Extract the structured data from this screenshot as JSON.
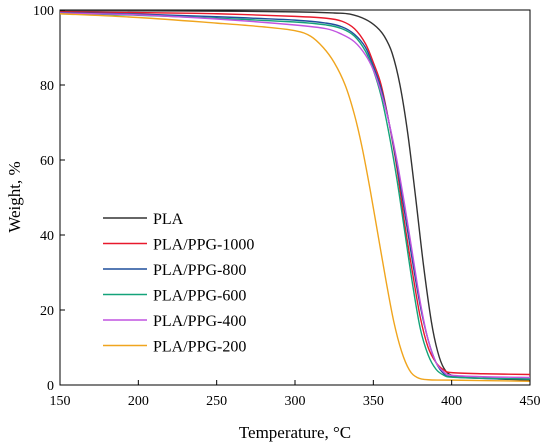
{
  "chart_data": {
    "type": "line",
    "title": "",
    "xlabel": "Temperature, °C",
    "ylabel": "Weight, %",
    "xlim": [
      150,
      450
    ],
    "ylim": [
      0,
      100
    ],
    "xticks": [
      150,
      200,
      250,
      300,
      350,
      400,
      450
    ],
    "yticks": [
      0,
      20,
      40,
      60,
      80,
      100
    ],
    "grid": false,
    "legend_position": "bottom-left",
    "series": [
      {
        "name": "PLA",
        "color": "#333333",
        "points": [
          [
            150,
            99.8
          ],
          [
            200,
            99.8
          ],
          [
            250,
            99.7
          ],
          [
            300,
            99.5
          ],
          [
            325,
            99.2
          ],
          [
            335,
            98.9
          ],
          [
            345,
            97.5
          ],
          [
            352,
            95.5
          ],
          [
            357,
            93
          ],
          [
            362,
            88.5
          ],
          [
            367,
            80
          ],
          [
            372,
            67
          ],
          [
            377,
            50
          ],
          [
            382,
            32
          ],
          [
            387,
            17
          ],
          [
            391,
            9
          ],
          [
            395,
            4.5
          ],
          [
            400,
            2.6
          ],
          [
            410,
            2
          ],
          [
            430,
            1.6
          ],
          [
            450,
            1.3
          ]
        ]
      },
      {
        "name": "PLA/PPG-1000",
        "color": "#e8192c",
        "points": [
          [
            150,
            99.5
          ],
          [
            200,
            99.3
          ],
          [
            250,
            99.0
          ],
          [
            300,
            98.3
          ],
          [
            320,
            97.8
          ],
          [
            330,
            97
          ],
          [
            338,
            95
          ],
          [
            345,
            91
          ],
          [
            350,
            86
          ],
          [
            355,
            80
          ],
          [
            360,
            70
          ],
          [
            365,
            58
          ],
          [
            370,
            43
          ],
          [
            375,
            30
          ],
          [
            380,
            18
          ],
          [
            385,
            10
          ],
          [
            390,
            6
          ],
          [
            395,
            4
          ],
          [
            400,
            3.3
          ],
          [
            420,
            3.0
          ],
          [
            450,
            2.8
          ]
        ]
      },
      {
        "name": "PLA/PPG-800",
        "color": "#1f4e9c",
        "points": [
          [
            150,
            99.3
          ],
          [
            200,
            98.9
          ],
          [
            250,
            98.2
          ],
          [
            300,
            97.3
          ],
          [
            320,
            96.5
          ],
          [
            330,
            95.5
          ],
          [
            338,
            93.5
          ],
          [
            345,
            90
          ],
          [
            350,
            85
          ],
          [
            355,
            79
          ],
          [
            360,
            70
          ],
          [
            365,
            59
          ],
          [
            370,
            46
          ],
          [
            375,
            33
          ],
          [
            380,
            21
          ],
          [
            385,
            12
          ],
          [
            390,
            6
          ],
          [
            395,
            3
          ],
          [
            400,
            2.2
          ],
          [
            420,
            1.8
          ],
          [
            450,
            1.6
          ]
        ]
      },
      {
        "name": "PLA/PPG-600",
        "color": "#14a37a",
        "points": [
          [
            150,
            99.0
          ],
          [
            200,
            98.6
          ],
          [
            250,
            97.8
          ],
          [
            300,
            96.8
          ],
          [
            320,
            96
          ],
          [
            330,
            95
          ],
          [
            338,
            93
          ],
          [
            345,
            89
          ],
          [
            350,
            84
          ],
          [
            355,
            77
          ],
          [
            360,
            67
          ],
          [
            365,
            55
          ],
          [
            370,
            41
          ],
          [
            375,
            27
          ],
          [
            380,
            15
          ],
          [
            385,
            8
          ],
          [
            390,
            4.2
          ],
          [
            395,
            2.6
          ],
          [
            400,
            2.1
          ],
          [
            420,
            1.8
          ],
          [
            450,
            1.6
          ]
        ]
      },
      {
        "name": "PLA/PPG-400",
        "color": "#c154e0",
        "points": [
          [
            150,
            99.2
          ],
          [
            200,
            98.7
          ],
          [
            250,
            97.6
          ],
          [
            300,
            96.0
          ],
          [
            320,
            95
          ],
          [
            330,
            93.5
          ],
          [
            338,
            91.5
          ],
          [
            345,
            88
          ],
          [
            350,
            84
          ],
          [
            355,
            78
          ],
          [
            360,
            70
          ],
          [
            365,
            60
          ],
          [
            370,
            48
          ],
          [
            375,
            35
          ],
          [
            380,
            22
          ],
          [
            385,
            12
          ],
          [
            390,
            6
          ],
          [
            395,
            3.5
          ],
          [
            400,
            2.6
          ],
          [
            420,
            2.2
          ],
          [
            450,
            2.0
          ]
        ]
      },
      {
        "name": "PLA/PPG-200",
        "color": "#f0a51e",
        "points": [
          [
            150,
            99.0
          ],
          [
            200,
            98.0
          ],
          [
            250,
            96.5
          ],
          [
            280,
            95.5
          ],
          [
            300,
            94.5
          ],
          [
            310,
            93
          ],
          [
            318,
            90
          ],
          [
            325,
            86
          ],
          [
            332,
            80
          ],
          [
            338,
            72
          ],
          [
            343,
            63
          ],
          [
            348,
            52
          ],
          [
            353,
            40
          ],
          [
            358,
            28
          ],
          [
            363,
            17
          ],
          [
            368,
            9
          ],
          [
            373,
            4
          ],
          [
            378,
            2
          ],
          [
            385,
            1.4
          ],
          [
            400,
            1.3
          ],
          [
            450,
            1.0
          ]
        ]
      }
    ]
  }
}
